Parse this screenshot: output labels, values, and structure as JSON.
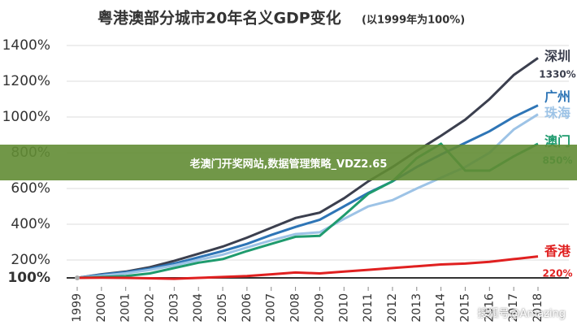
{
  "chart_data": {
    "type": "line",
    "title": "粤港澳部分城市20年名义GDP变化",
    "subtitle": "(以1999年为100%)",
    "x": [
      1999,
      2000,
      2001,
      2002,
      2003,
      2004,
      2005,
      2006,
      2007,
      2008,
      2009,
      2010,
      2011,
      2012,
      2013,
      2014,
      2015,
      2016,
      2017,
      2018
    ],
    "xlim": [
      1999,
      2018
    ],
    "ylim": [
      50,
      1400
    ],
    "yticks": [
      {
        "value": 100,
        "label": "100%"
      },
      {
        "value": 200,
        "label": "200%"
      },
      {
        "value": 400,
        "label": "400%"
      },
      {
        "value": 600,
        "label": "600%"
      },
      {
        "value": 800,
        "label": "800%"
      },
      {
        "value": 1000,
        "label": "1000%"
      },
      {
        "value": 1200,
        "label": "1200%"
      },
      {
        "value": 1400,
        "label": "1400%"
      }
    ],
    "series": [
      {
        "name": "深圳",
        "color": "#3b3f4e",
        "values": [
          100,
          120,
          135,
          160,
          195,
          235,
          275,
          325,
          380,
          435,
          465,
          545,
          640,
          720,
          810,
          895,
          985,
          1100,
          1235,
          1330
        ],
        "value_labels": [
          null,
          null,
          null,
          null,
          null,
          null,
          null,
          null,
          null,
          null,
          null,
          null,
          null,
          null,
          null,
          null,
          null,
          null,
          null,
          "1330%"
        ]
      },
      {
        "name": "广州",
        "color": "#2e75b6",
        "values": [
          100,
          118,
          132,
          152,
          180,
          215,
          250,
          290,
          340,
          385,
          425,
          500,
          575,
          640,
          720,
          790,
          855,
          920,
          1000,
          1065
        ]
      },
      {
        "name": "珠海",
        "color": "#9dc3e6",
        "values": [
          100,
          112,
          125,
          145,
          170,
          200,
          230,
          270,
          310,
          345,
          355,
          430,
          500,
          535,
          600,
          660,
          720,
          800,
          930,
          1015
        ]
      },
      {
        "name": "澳门",
        "color": "#1f9b6e",
        "values": [
          100,
          105,
          110,
          125,
          155,
          185,
          205,
          250,
          290,
          330,
          335,
          450,
          570,
          640,
          770,
          850,
          700,
          700,
          780,
          850
        ],
        "value_labels": [
          null,
          null,
          null,
          null,
          null,
          null,
          null,
          null,
          null,
          null,
          null,
          null,
          null,
          null,
          null,
          null,
          null,
          null,
          null,
          "850%"
        ]
      },
      {
        "name": "香港",
        "color": "#e02020",
        "values": [
          100,
          101,
          100,
          98,
          95,
          100,
          105,
          110,
          120,
          130,
          125,
          135,
          145,
          155,
          165,
          175,
          180,
          190,
          205,
          220
        ],
        "value_labels": [
          null,
          null,
          null,
          null,
          null,
          null,
          null,
          null,
          null,
          null,
          null,
          null,
          null,
          null,
          null,
          null,
          null,
          null,
          null,
          "220%"
        ]
      }
    ]
  },
  "banner": "老澳门开奖网站,数据管理策略_VDZ2.65",
  "watermark": "搜狐号@Amazing"
}
